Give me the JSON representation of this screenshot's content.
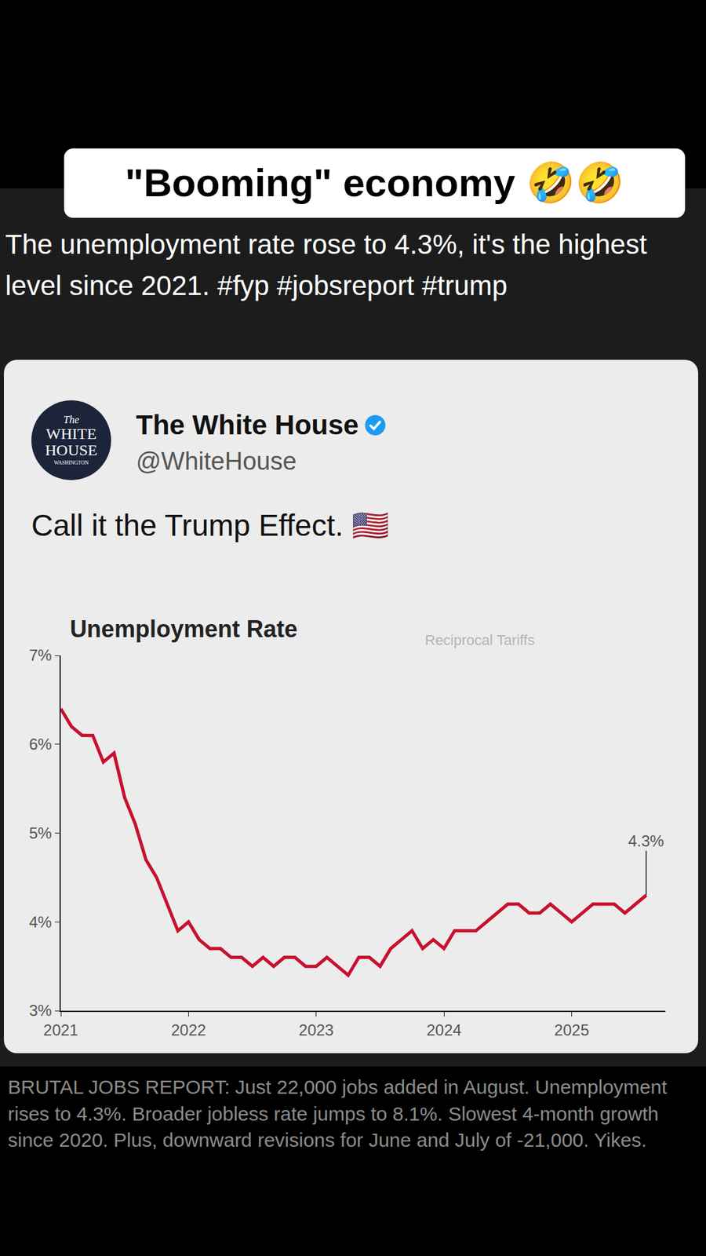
{
  "post": {
    "caption": "\"Booming\" economy 🤣🤣",
    "description": "The unemployment rate rose to 4.3%, it's the highest level since 2021. #fyp #jobsreport #trump",
    "background_text": "BRUTAL JOBS REPORT: Just 22,000 jobs added in August. Unemployment rises to 4.3%. Broader jobless rate jumps to 8.1%. Slowest 4-month growth since 2020. Plus, downward revisions for June and July of -21,000. Yikes."
  },
  "embedded_post": {
    "logo": [
      "The",
      "WHITE",
      "HOUSE",
      "WASHINGTON"
    ],
    "name": "The White House",
    "handle": "@WhiteHouse",
    "text": "Call it the Trump Effect. 🇺🇸",
    "background_sign": "Reciprocal Tariffs"
  },
  "chart_data": {
    "type": "line",
    "title": "Unemployment Rate",
    "color": "#c8102e",
    "categories": [
      "2021",
      null,
      null,
      null,
      null,
      null,
      null,
      null,
      null,
      null,
      null,
      null,
      "2022",
      null,
      null,
      null,
      null,
      null,
      null,
      null,
      null,
      null,
      null,
      null,
      "2023",
      null,
      null,
      null,
      null,
      null,
      null,
      null,
      null,
      null,
      null,
      null,
      "2024",
      null,
      null,
      null,
      null,
      null,
      null,
      null,
      null,
      null,
      null,
      null,
      "2025",
      null,
      null,
      null,
      null,
      null,
      null,
      null
    ],
    "values": [
      6.4,
      6.2,
      6.1,
      6.1,
      5.8,
      5.9,
      5.4,
      5.1,
      4.7,
      4.5,
      4.2,
      3.9,
      4.0,
      3.8,
      3.7,
      3.7,
      3.6,
      3.6,
      3.5,
      3.6,
      3.5,
      3.6,
      3.6,
      3.5,
      3.5,
      3.6,
      3.5,
      3.4,
      3.6,
      3.6,
      3.5,
      3.7,
      3.8,
      3.9,
      3.7,
      3.8,
      3.7,
      3.9,
      3.9,
      3.9,
      4.0,
      4.1,
      4.2,
      4.2,
      4.1,
      4.1,
      4.2,
      4.1,
      4.0,
      4.1,
      4.2,
      4.2,
      4.2,
      4.1,
      4.2,
      4.3
    ],
    "ylim": [
      3,
      7
    ],
    "yticks": [
      {
        "value": 3,
        "label": "3%"
      },
      {
        "value": 4,
        "label": "4%"
      },
      {
        "value": 5,
        "label": "5%"
      },
      {
        "value": 6,
        "label": "6%"
      },
      {
        "value": 7,
        "label": "7%"
      }
    ],
    "annotations": [
      {
        "text": "4.3%"
      }
    ],
    "grid": false
  }
}
